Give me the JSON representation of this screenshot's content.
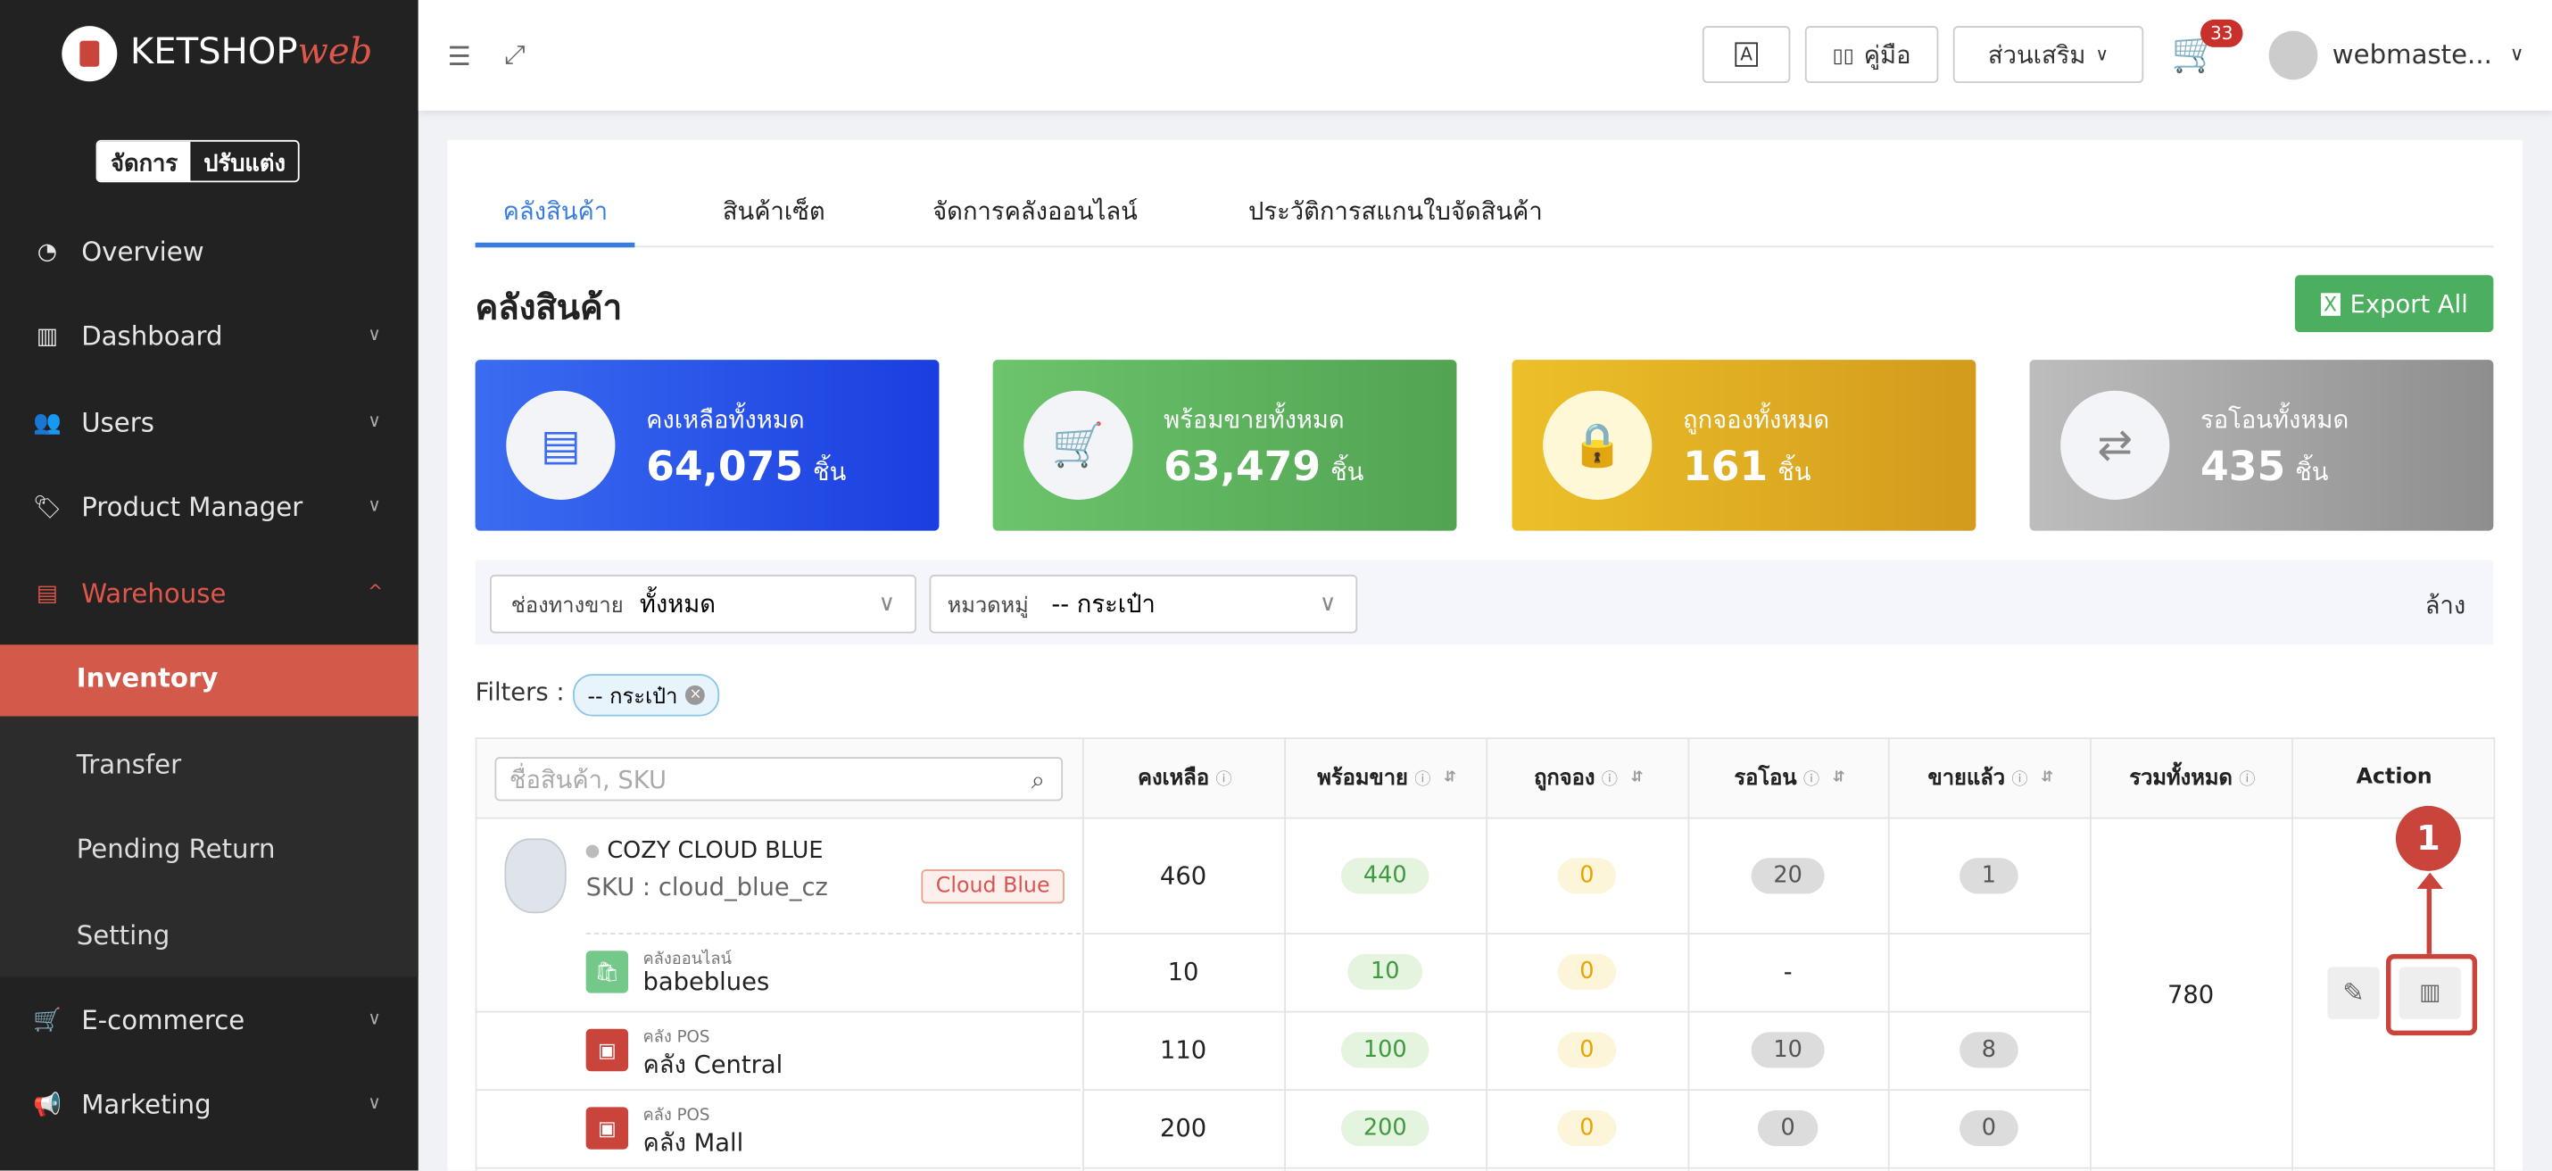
{
  "sidebar": {
    "logo": {
      "brand": "KETSHOP",
      "suffix": "web"
    },
    "mode_toggle": [
      "จัดการ",
      "ปรับแต่ง"
    ],
    "menu": [
      "Overview",
      "Dashboard",
      "Users",
      "Product Manager",
      "Warehouse"
    ],
    "warehouse_submenu": [
      "Inventory",
      "Transfer",
      "Pending Return",
      "Setting"
    ],
    "menu_bottom": [
      "E-commerce",
      "Marketing"
    ]
  },
  "header": {
    "guide": "คู่มือ",
    "addons": "ส่วนเสริม",
    "cart_count": 33,
    "user": "webmaste..."
  },
  "tabs": [
    "คลังสินค้า",
    "สินค้าเซ็ต",
    "จัดการคลังออนไลน์",
    "ประวัติการสแกนใบจัดสินค้า"
  ],
  "page_title": "คลังสินค้า",
  "export_button": "Export All",
  "stats": [
    {
      "label": "คงเหลือทั้งหมด",
      "value": "64,075",
      "unit": "ชิ้น"
    },
    {
      "label": "พร้อมขายทั้งหมด",
      "value": "63,479",
      "unit": "ชิ้น"
    },
    {
      "label": "ถูกจองทั้งหมด",
      "value": "161",
      "unit": "ชิ้น"
    },
    {
      "label": "รอโอนทั้งหมด",
      "value": "435",
      "unit": "ชิ้น"
    }
  ],
  "filters": {
    "channel_label": "ช่องทางขาย",
    "channel_value": "ทั้งหมด",
    "category_label": "หมวดหมู่",
    "category_value": "-- กระเป๋า",
    "clear": "ล้าง",
    "applied_label": "Filters :",
    "applied_chips": [
      "-- กระเป๋า"
    ]
  },
  "table": {
    "search_placeholder": "ชื่อสินค้า, SKU",
    "headers": [
      "คงเหลือ",
      "พร้อมขาย",
      "ถูกจอง",
      "รอโอน",
      "ขายแล้ว",
      "รวมทั้งหมด",
      "Action"
    ],
    "product": {
      "name": "COZY CLOUD BLUE",
      "sku": "SKU : cloud_blue_cz",
      "tag": "Cloud Blue",
      "values": [
        460,
        440,
        0,
        20,
        1
      ],
      "total": 780
    },
    "warehouses": [
      {
        "type": "คลังออนไลน์",
        "name": "babeblues",
        "values": [
          10,
          10,
          0,
          "-"
        ]
      },
      {
        "type": "คลัง POS",
        "name": "คลัง Central",
        "values": [
          110,
          100,
          0,
          10,
          8
        ]
      },
      {
        "type": "คลัง POS",
        "name": "คลัง Mall",
        "values": [
          200,
          200,
          0,
          0,
          0
        ]
      }
    ]
  },
  "annotation": 1
}
